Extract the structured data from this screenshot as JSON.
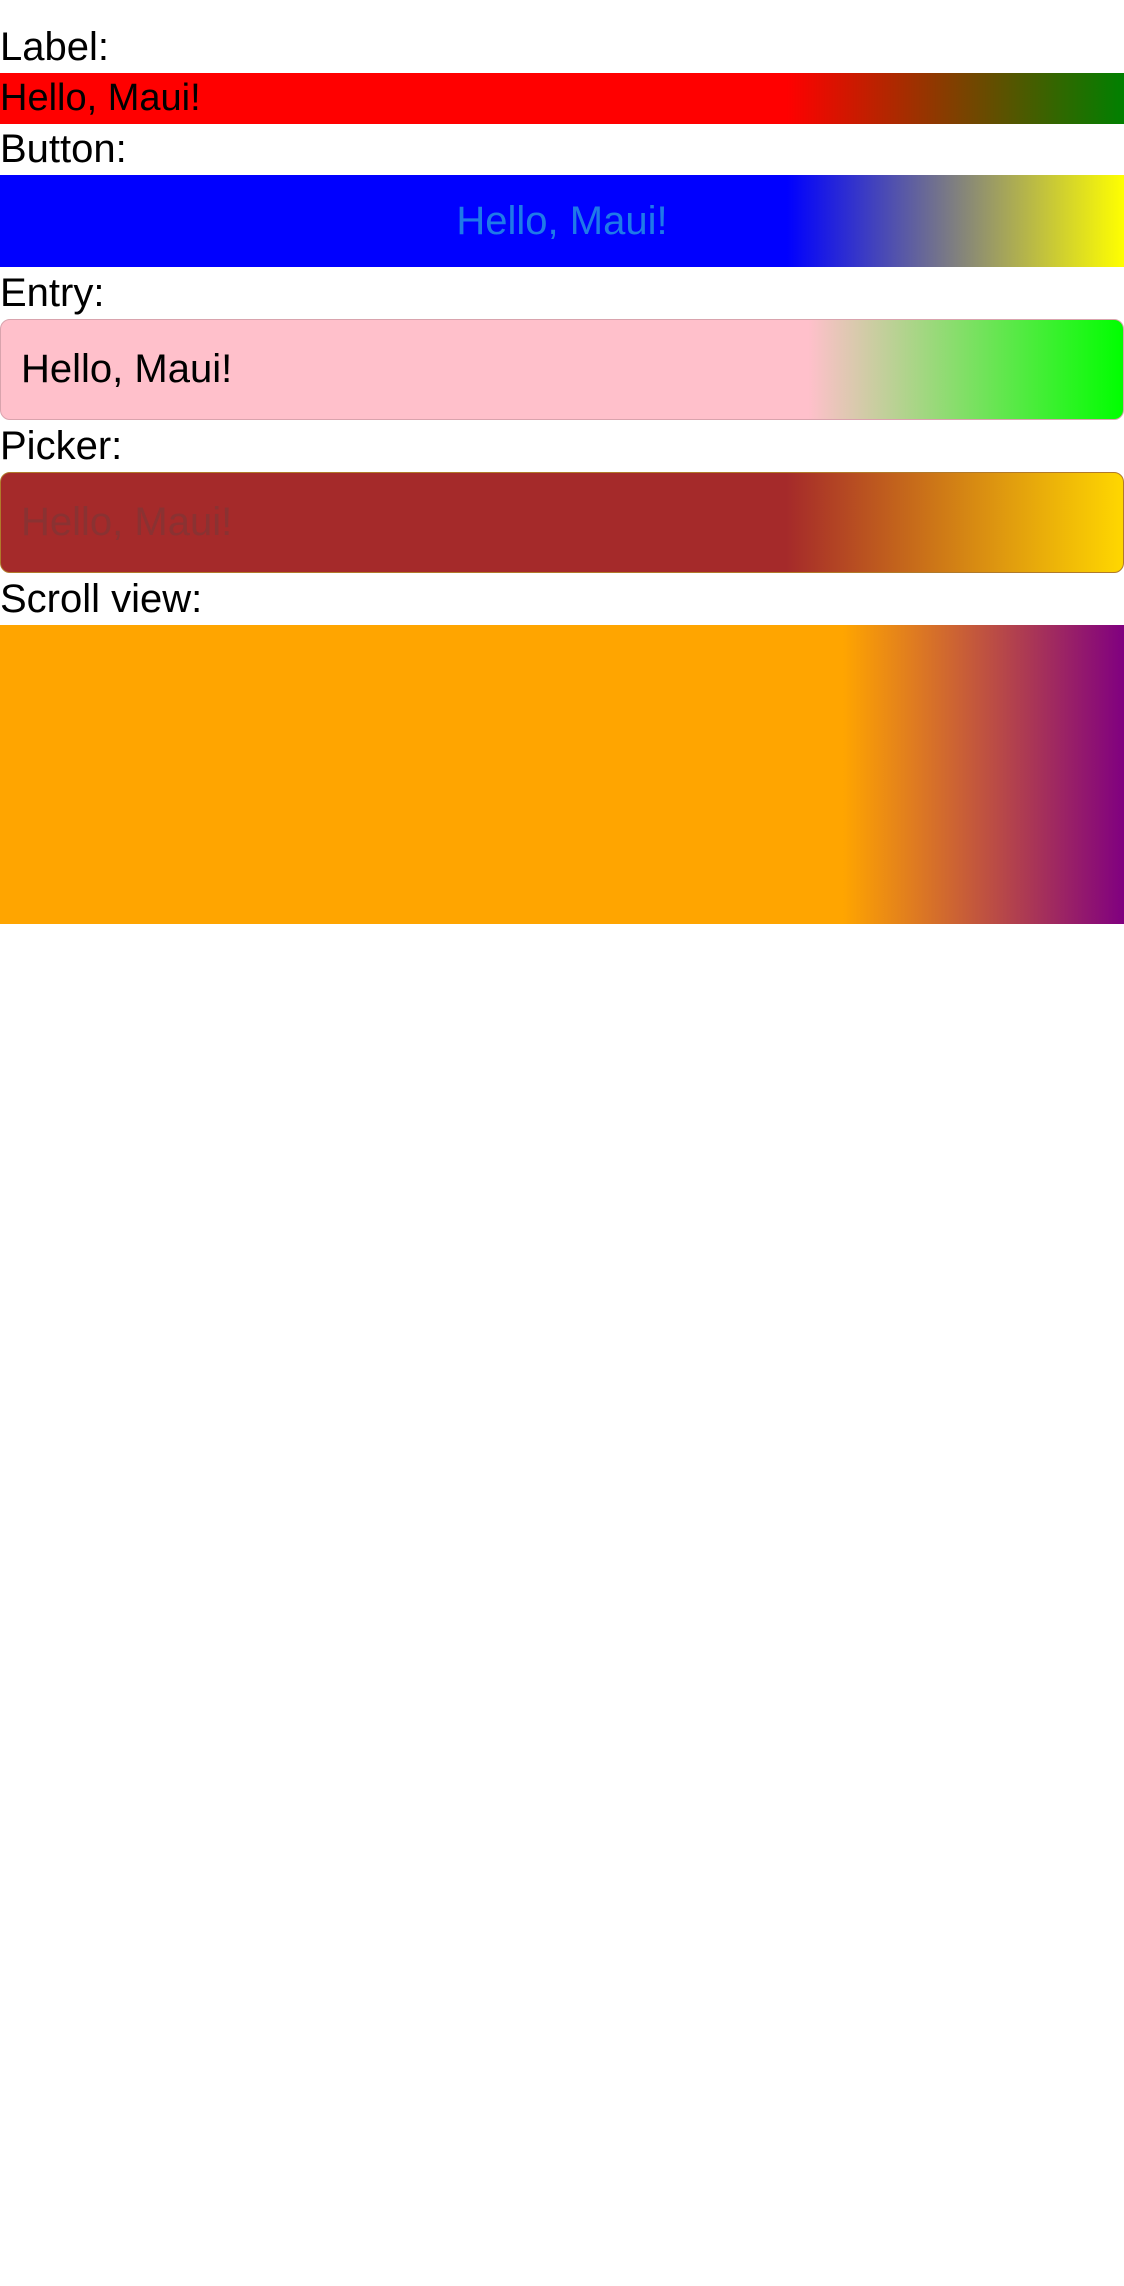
{
  "label_section": {
    "caption": "Label:",
    "text": "Hello, Maui!",
    "gradient": [
      "#ff0000",
      "#008000"
    ]
  },
  "button_section": {
    "caption": "Button:",
    "text": "Hello, Maui!",
    "gradient": [
      "#0000ff",
      "#ffff00"
    ]
  },
  "entry_section": {
    "caption": "Entry:",
    "value": "Hello, Maui!",
    "gradient": [
      "#ffc0cb",
      "#00ff00"
    ]
  },
  "picker_section": {
    "caption": "Picker:",
    "placeholder": "Hello, Maui!",
    "gradient": [
      "#a52a2a",
      "#ffd700"
    ]
  },
  "scroll_section": {
    "caption": "Scroll view:",
    "gradient": [
      "#ffa500",
      "#800080"
    ]
  }
}
